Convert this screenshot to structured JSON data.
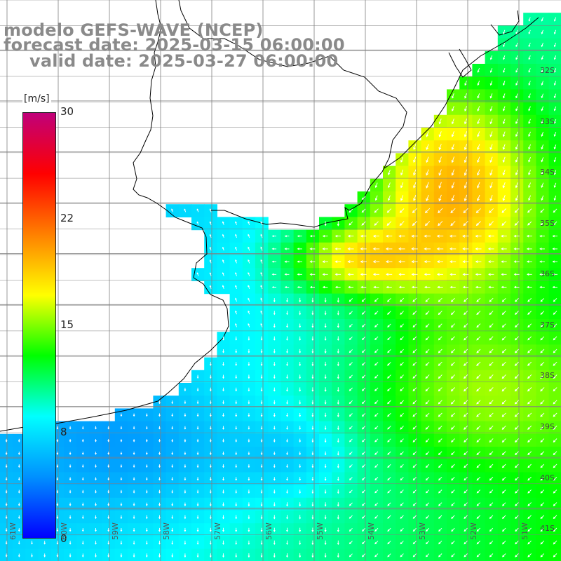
{
  "title": {
    "line1": "modelo GEFS-WAVE (NCEP)",
    "line2": "forecast date: 2025-03-15 06:00:00",
    "line3": "valid date: 2025-03-27 06:00:00"
  },
  "colorbar": {
    "unit": "[m/s]",
    "ticks": [
      "30",
      "22",
      "15",
      "8",
      "0"
    ],
    "tick_values": [
      30,
      22,
      15,
      8,
      0
    ],
    "min": 0,
    "max": 30,
    "colors": [
      "#0000ff",
      "#0090ff",
      "#00ffff",
      "#00ff00",
      "#ffff00",
      "#ff8000",
      "#ff0000",
      "#c0007a"
    ]
  },
  "lat_labels": [
    "32S",
    "33S",
    "34S",
    "35S",
    "36S",
    "37S",
    "38S",
    "39S",
    "40S",
    "41S"
  ],
  "lon_labels": [
    "61W",
    "60W",
    "59W",
    "58W",
    "57W",
    "56W",
    "55W",
    "54W",
    "53W",
    "52W",
    "51W"
  ],
  "colors": {
    "land": "#ffffff",
    "coastline": "#000000",
    "grid": "#808080",
    "title": "#8a8a8a",
    "arrows": "#ffffff"
  }
}
